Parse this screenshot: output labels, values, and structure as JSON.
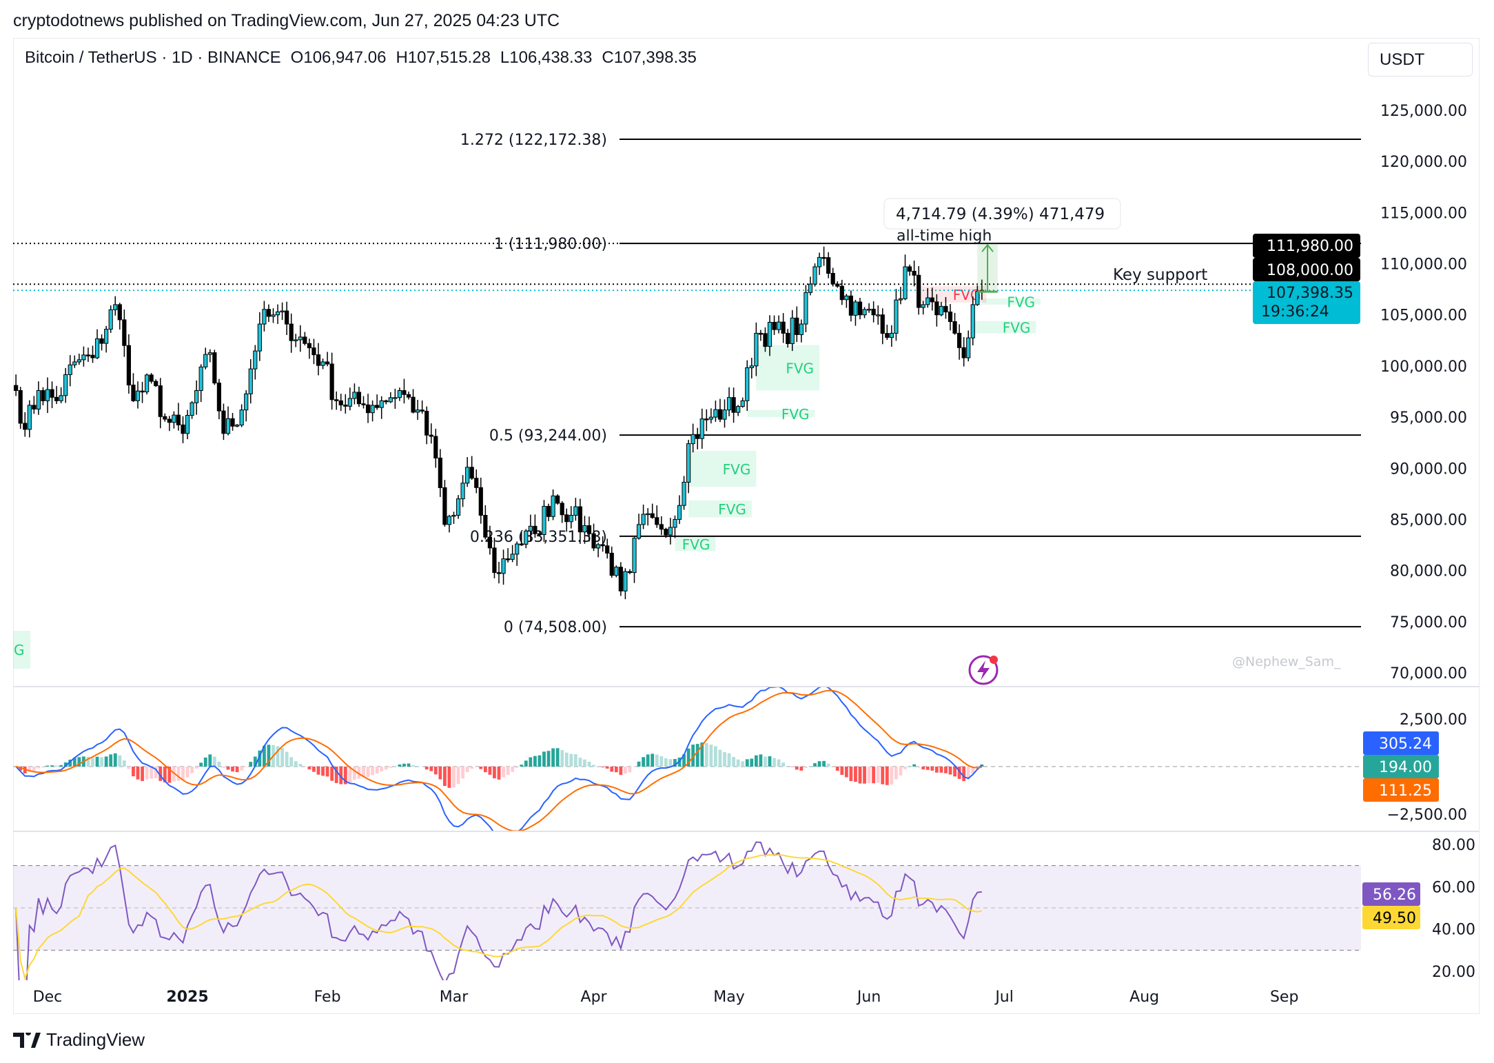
{
  "publisher": "cryptodotnews published on TradingView.com, Jun 27, 2025 04:23 UTC",
  "header": {
    "symbol": "Bitcoin / TetherUS · 1D · BINANCE",
    "open": "O106,947.06",
    "high": "H107,515.28",
    "low": "L106,438.33",
    "close": "C107,398.35"
  },
  "currency": "USDT",
  "footer_brand": "TradingView",
  "watermark": "@Nephew_Sam_",
  "colors": {
    "up": "#22c3d8",
    "down": "#000000",
    "macd": "#2962ff",
    "signal": "#ff6d00",
    "hist_up": "#26a69a",
    "hist_down": "#ff5252",
    "rsi": "#7e57c2",
    "rsi_ma": "#fdd835",
    "fvg": "#21d07a",
    "fvg_red": "#f23645",
    "price_tag": "#00bcd4"
  },
  "chart_data": {
    "type": "candlestick",
    "title": "Bitcoin / TetherUS · 1D · BINANCE",
    "price_axis": {
      "ylim": [
        70000,
        127500
      ],
      "ticks": [
        "125,000.00",
        "120,000.00",
        "115,000.00",
        "110,000.00",
        "105,000.00",
        "100,000.00",
        "95,000.00",
        "90,000.00",
        "85,000.00",
        "80,000.00",
        "75,000.00",
        "70,000.00"
      ],
      "tick_values": [
        125000,
        120000,
        115000,
        110000,
        105000,
        100000,
        95000,
        90000,
        85000,
        80000,
        75000,
        70000
      ]
    },
    "time_axis": {
      "labels": [
        "Dec",
        "2025",
        "Feb",
        "Mar",
        "Apr",
        "May",
        "Jun",
        "Jul",
        "Aug",
        "Sep"
      ],
      "label_days": [
        0,
        31,
        62,
        90,
        121,
        151,
        182,
        212,
        243,
        274
      ],
      "origin": "2024-12-01"
    },
    "close_path": [
      [
        -7,
        97600
      ],
      [
        -5,
        93800
      ],
      [
        -2,
        97600
      ],
      [
        2,
        96600
      ],
      [
        6,
        100400
      ],
      [
        10,
        100800
      ],
      [
        15,
        106000
      ],
      [
        17,
        102000
      ],
      [
        19,
        96600
      ],
      [
        23,
        98500
      ],
      [
        26,
        94800
      ],
      [
        30,
        93400
      ],
      [
        33,
        97600
      ],
      [
        36,
        101300
      ],
      [
        39,
        93400
      ],
      [
        43,
        95700
      ],
      [
        47,
        104100
      ],
      [
        50,
        105000
      ],
      [
        53,
        104100
      ],
      [
        57,
        102200
      ],
      [
        61,
        100400
      ],
      [
        64,
        96600
      ],
      [
        70,
        96200
      ],
      [
        74,
        96600
      ],
      [
        78,
        97600
      ],
      [
        82,
        95700
      ],
      [
        86,
        91000
      ],
      [
        88,
        84500
      ],
      [
        90,
        85400
      ],
      [
        93,
        90100
      ],
      [
        96,
        85400
      ],
      [
        99,
        79800
      ],
      [
        104,
        82600
      ],
      [
        108,
        83600
      ],
      [
        112,
        87300
      ],
      [
        116,
        85400
      ],
      [
        120,
        83600
      ],
      [
        124,
        81700
      ],
      [
        127,
        78000
      ],
      [
        129,
        79800
      ],
      [
        131,
        84500
      ],
      [
        135,
        84500
      ],
      [
        139,
        85000
      ],
      [
        142,
        92400
      ],
      [
        146,
        94800
      ],
      [
        150,
        95700
      ],
      [
        154,
        96600
      ],
      [
        157,
        103200
      ],
      [
        163,
        103200
      ],
      [
        167,
        104100
      ],
      [
        170,
        109700
      ],
      [
        172,
        110600
      ],
      [
        175,
        107800
      ],
      [
        180,
        105000
      ],
      [
        184,
        105000
      ],
      [
        187,
        103200
      ],
      [
        190,
        109700
      ],
      [
        194,
        106000
      ],
      [
        197,
        105000
      ],
      [
        201,
        103200
      ],
      [
        203,
        100800
      ],
      [
        205,
        106000
      ],
      [
        207,
        107398.35
      ]
    ],
    "fib_levels": [
      {
        "label": "1.272 (122,172.38)",
        "value": 122172.38
      },
      {
        "label": "1 (111,980.00)",
        "value": 111980
      },
      {
        "label": "0.5 (93,244.00)",
        "value": 93244
      },
      {
        "label": "0.236 (83,351.38)",
        "value": 83351.38
      },
      {
        "label": "0 (74,508.00)",
        "value": 74508
      }
    ],
    "fvg_zones": [
      {
        "label": "FVG",
        "day_from": 157,
        "day_to": 171,
        "top": 102050,
        "bottom": 97600,
        "color": "green"
      },
      {
        "label": "FVG",
        "day_from": 155,
        "day_to": 170,
        "top": 95700,
        "bottom": 95000,
        "color": "green"
      },
      {
        "label": "FVG",
        "day_from": 142,
        "day_to": 157,
        "top": 91700,
        "bottom": 88200,
        "color": "green"
      },
      {
        "label": "FVG",
        "day_from": 142,
        "day_to": 156,
        "top": 86850,
        "bottom": 85200,
        "color": "green"
      },
      {
        "label": "FVG",
        "day_from": 139,
        "day_to": 148,
        "top": 83300,
        "bottom": 81900,
        "color": "green"
      },
      {
        "label": "FVG",
        "day_from": 205,
        "day_to": 219,
        "top": 104400,
        "bottom": 103200,
        "color": "green"
      },
      {
        "label": "FVG",
        "day_from": 207,
        "day_to": 220,
        "top": 106600,
        "bottom": 106000,
        "color": "green"
      },
      {
        "label": "FVG",
        "day_from": 193,
        "day_to": 208,
        "top": 107800,
        "bottom": 106200,
        "color": "red"
      }
    ],
    "partial_fvg_label": "G",
    "annotations": {
      "measure": "4,714.79 (4.39%) 471,479",
      "ath": "all-time high",
      "key_support": "Key support",
      "key_support_value": 108000,
      "measure_from": 107265,
      "measure_to": 111980
    },
    "price_tags": {
      "ath": "111,980.00",
      "support": "108,000.00",
      "last": "107,398.35",
      "countdown": "19:36:24",
      "last_value": 107398.35
    },
    "macd": {
      "ticks": [
        "2,500.00",
        "−2,500.00"
      ],
      "tick_values": [
        2500,
        -2500
      ],
      "tags": {
        "macd": "305.24",
        "hist": "194.00",
        "signal": "111.25"
      }
    },
    "rsi": {
      "ticks": [
        "80.00",
        "60.00",
        "40.00",
        "20.00"
      ],
      "tick_values": [
        80,
        60,
        40,
        20
      ],
      "bands": [
        70,
        50,
        30
      ],
      "tags": {
        "rsi": "56.26",
        "ma": "49.50"
      }
    }
  }
}
